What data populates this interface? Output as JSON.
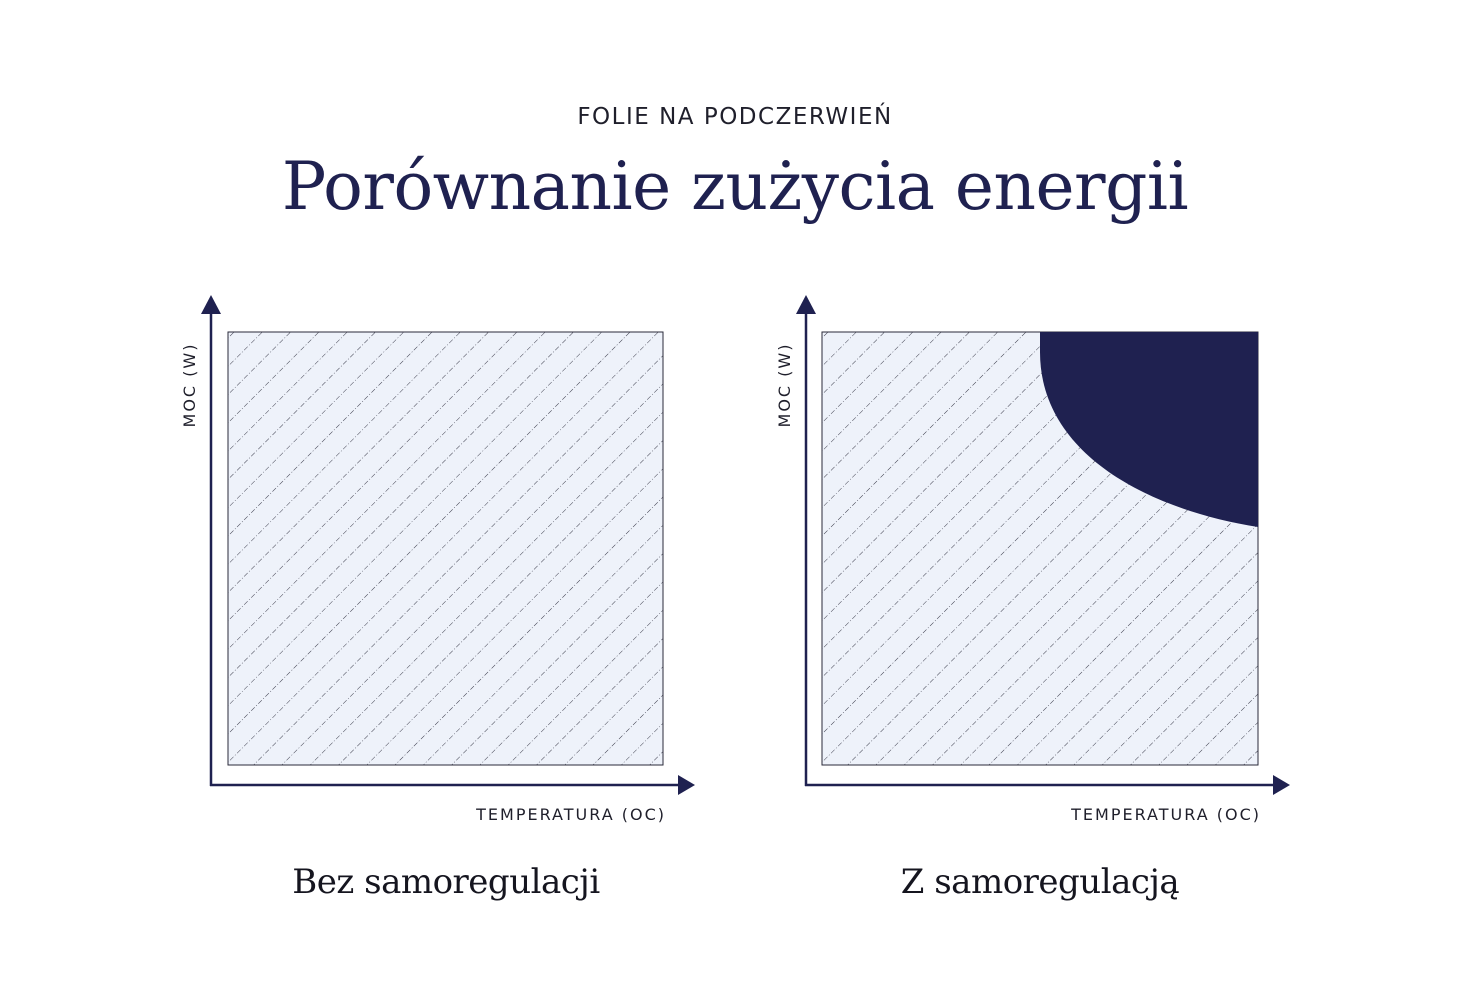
{
  "header": {
    "eyebrow": "FOLIE NA PODCZERWIEŃ",
    "title": "Porównanie zużycia energii"
  },
  "colors": {
    "navy": "#1f2150",
    "hatch_fill": "#eef2fa",
    "hatch_line": "#2a2a3a"
  },
  "panels": [
    {
      "y_axis_label": "MOC (W)",
      "x_axis_label": "TEMPERATURA (OC)",
      "caption": "Bez samoregulacji",
      "savings_region": false
    },
    {
      "y_axis_label": "MOC (W)",
      "x_axis_label": "TEMPERATURA (OC)",
      "caption": "Z samoregulacją",
      "savings_region": true
    }
  ]
}
